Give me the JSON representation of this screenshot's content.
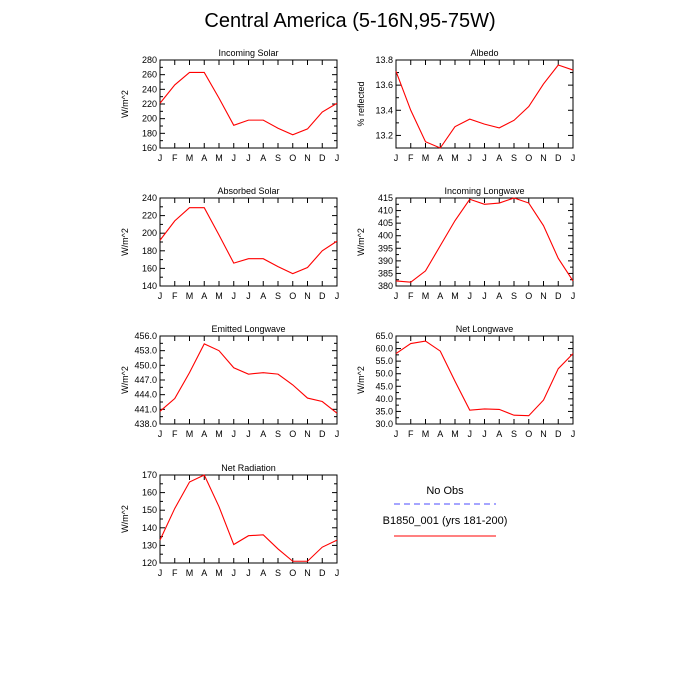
{
  "page": {
    "title": "Central America (5-16N,95-75W)"
  },
  "colors": {
    "model": "#ff0000",
    "obs": "#4b4bff",
    "axis": "#000000"
  },
  "legend": {
    "obs_label": "No Obs",
    "model_label": "B1850_001 (yrs 181-200)"
  },
  "chart_data": [
    {
      "type": "line",
      "title": "Incoming Solar",
      "ylabel": "W/m^2",
      "xlabel": "",
      "categories": [
        "J",
        "F",
        "M",
        "A",
        "M",
        "J",
        "J",
        "A",
        "S",
        "O",
        "N",
        "D",
        "J"
      ],
      "ylim": [
        160,
        280
      ],
      "yticks": [
        160,
        180,
        200,
        220,
        240,
        260,
        280
      ],
      "ytick_labels": [
        "160",
        "180",
        "200",
        "220",
        "240",
        "260",
        "280"
      ],
      "series": [
        {
          "name": "B1850_001 (yrs 181-200)",
          "values": [
            221,
            246,
            263,
            263,
            228,
            191,
            198,
            198,
            187,
            178,
            186,
            209,
            221
          ]
        }
      ]
    },
    {
      "type": "line",
      "title": "Albedo",
      "ylabel": "% reflected",
      "xlabel": "",
      "categories": [
        "J",
        "F",
        "M",
        "A",
        "M",
        "J",
        "J",
        "A",
        "S",
        "O",
        "N",
        "D",
        "J"
      ],
      "ylim": [
        13.1,
        13.8
      ],
      "yticks": [
        13.2,
        13.4,
        13.6,
        13.8
      ],
      "ytick_labels": [
        "13.2",
        "13.4",
        "13.6",
        "13.8"
      ],
      "series": [
        {
          "name": "B1850_001 (yrs 181-200)",
          "values": [
            13.71,
            13.4,
            13.15,
            13.1,
            13.27,
            13.33,
            13.29,
            13.26,
            13.32,
            13.43,
            13.61,
            13.76,
            13.72
          ]
        }
      ]
    },
    {
      "type": "line",
      "title": "Absorbed Solar",
      "ylabel": "W/m^2",
      "xlabel": "",
      "categories": [
        "J",
        "F",
        "M",
        "A",
        "M",
        "J",
        "J",
        "A",
        "S",
        "O",
        "N",
        "D",
        "J"
      ],
      "ylim": [
        140,
        240
      ],
      "yticks": [
        140,
        160,
        180,
        200,
        220,
        240
      ],
      "ytick_labels": [
        "140",
        "160",
        "180",
        "200",
        "220",
        "240"
      ],
      "series": [
        {
          "name": "B1850_001 (yrs 181-200)",
          "values": [
            192,
            214,
            229,
            229,
            198,
            166,
            171,
            171,
            162,
            154,
            161,
            180,
            191
          ]
        }
      ]
    },
    {
      "type": "line",
      "title": "Incoming Longwave",
      "ylabel": "W/m^2",
      "xlabel": "",
      "categories": [
        "J",
        "F",
        "M",
        "A",
        "M",
        "J",
        "J",
        "A",
        "S",
        "O",
        "N",
        "D",
        "J"
      ],
      "ylim": [
        380,
        415
      ],
      "yticks": [
        380,
        385,
        390,
        395,
        400,
        405,
        410,
        415
      ],
      "ytick_labels": [
        "380",
        "385",
        "390",
        "395",
        "400",
        "405",
        "410",
        "415"
      ],
      "series": [
        {
          "name": "B1850_001 (yrs 181-200)",
          "values": [
            382,
            381.5,
            386,
            396,
            406,
            414.5,
            412.5,
            413,
            415,
            413,
            404,
            391,
            382
          ]
        }
      ]
    },
    {
      "type": "line",
      "title": "Emitted Longwave",
      "ylabel": "W/m^2",
      "xlabel": "",
      "categories": [
        "J",
        "F",
        "M",
        "A",
        "M",
        "J",
        "J",
        "A",
        "S",
        "O",
        "N",
        "D",
        "J"
      ],
      "ylim": [
        438,
        456
      ],
      "yticks": [
        438,
        441,
        444,
        447,
        450,
        453,
        456
      ],
      "ytick_labels": [
        "438.0",
        "441.0",
        "444.0",
        "447.0",
        "450.0",
        "453.0",
        "456.0"
      ],
      "series": [
        {
          "name": "B1850_001 (yrs 181-200)",
          "values": [
            440.6,
            443.2,
            448.5,
            454.4,
            453.0,
            449.5,
            448.2,
            448.5,
            448.2,
            446.0,
            443.3,
            442.6,
            440.2
          ]
        }
      ]
    },
    {
      "type": "line",
      "title": "Net Longwave",
      "ylabel": "W/m^2",
      "xlabel": "",
      "categories": [
        "J",
        "F",
        "M",
        "A",
        "M",
        "J",
        "J",
        "A",
        "S",
        "O",
        "N",
        "D",
        "J"
      ],
      "ylim": [
        30,
        65
      ],
      "yticks": [
        30,
        35,
        40,
        45,
        50,
        55,
        60,
        65
      ],
      "ytick_labels": [
        "30.0",
        "35.0",
        "40.0",
        "45.0",
        "50.0",
        "55.0",
        "60.0",
        "65.0"
      ],
      "series": [
        {
          "name": "B1850_001 (yrs 181-200)",
          "values": [
            58,
            62,
            63,
            59,
            47,
            35.5,
            36,
            35.8,
            33.5,
            33.3,
            39.5,
            52,
            58
          ]
        }
      ]
    },
    {
      "type": "line",
      "title": "Net Radiation",
      "ylabel": "W/m^2",
      "xlabel": "",
      "categories": [
        "J",
        "F",
        "M",
        "A",
        "M",
        "J",
        "J",
        "A",
        "S",
        "O",
        "N",
        "D",
        "J"
      ],
      "ylim": [
        120,
        170
      ],
      "yticks": [
        120,
        130,
        140,
        150,
        160,
        170
      ],
      "ytick_labels": [
        "120",
        "130",
        "140",
        "150",
        "160",
        "170"
      ],
      "series": [
        {
          "name": "B1850_001 (yrs 181-200)",
          "values": [
            133,
            151,
            166,
            170,
            152,
            130.5,
            135.5,
            136,
            128,
            121,
            121,
            129,
            133
          ]
        }
      ]
    }
  ]
}
